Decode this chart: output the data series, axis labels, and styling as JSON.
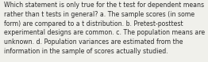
{
  "lines": [
    "Which statement is only true for the t test for dependent means",
    "rather than t tests in general? a. The sample scores (in some",
    "form) are compared to a t distribution. b. Pretest-posttest",
    "experimental designs are common. c. The population means are",
    "unknown. d. Population variances are estimated from the",
    "information in the sample of scores actually studied."
  ],
  "background_color": "#f0f0eb",
  "text_color": "#2c2c2c",
  "font_size": 5.55,
  "fig_width": 2.62,
  "fig_height": 0.79,
  "dpi": 100
}
